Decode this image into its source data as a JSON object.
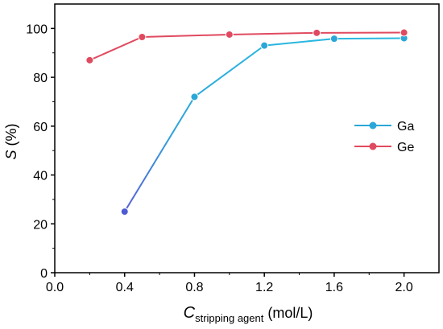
{
  "chart_data": {
    "type": "line",
    "x_axis": {
      "label_main": "C",
      "label_sub": "stripping agent",
      "label_unit": " (mol/L)",
      "range": [
        0.0,
        2.2
      ],
      "ticks": [
        "0.0",
        "0.4",
        "0.8",
        "1.2",
        "1.6",
        "2.0"
      ]
    },
    "y_axis": {
      "label_main": "S",
      "label_unit": " (%)",
      "range": [
        0,
        110
      ],
      "ticks": [
        "0",
        "20",
        "40",
        "60",
        "80",
        "100"
      ]
    },
    "grid": false,
    "legend_placement": "right-middle",
    "series": [
      {
        "name": "Ga",
        "color": "#2aa7d8",
        "points": [
          [
            0.4,
            25
          ],
          [
            0.8,
            72
          ],
          [
            1.2,
            93
          ],
          [
            1.6,
            95.8
          ],
          [
            2.0,
            96
          ]
        ]
      },
      {
        "name": "Ge",
        "color": "#e04a5f",
        "points": [
          [
            0.2,
            87
          ],
          [
            0.5,
            96.5
          ],
          [
            1.0,
            97.5
          ],
          [
            1.5,
            98.2
          ],
          [
            2.0,
            98.3
          ]
        ]
      }
    ]
  }
}
